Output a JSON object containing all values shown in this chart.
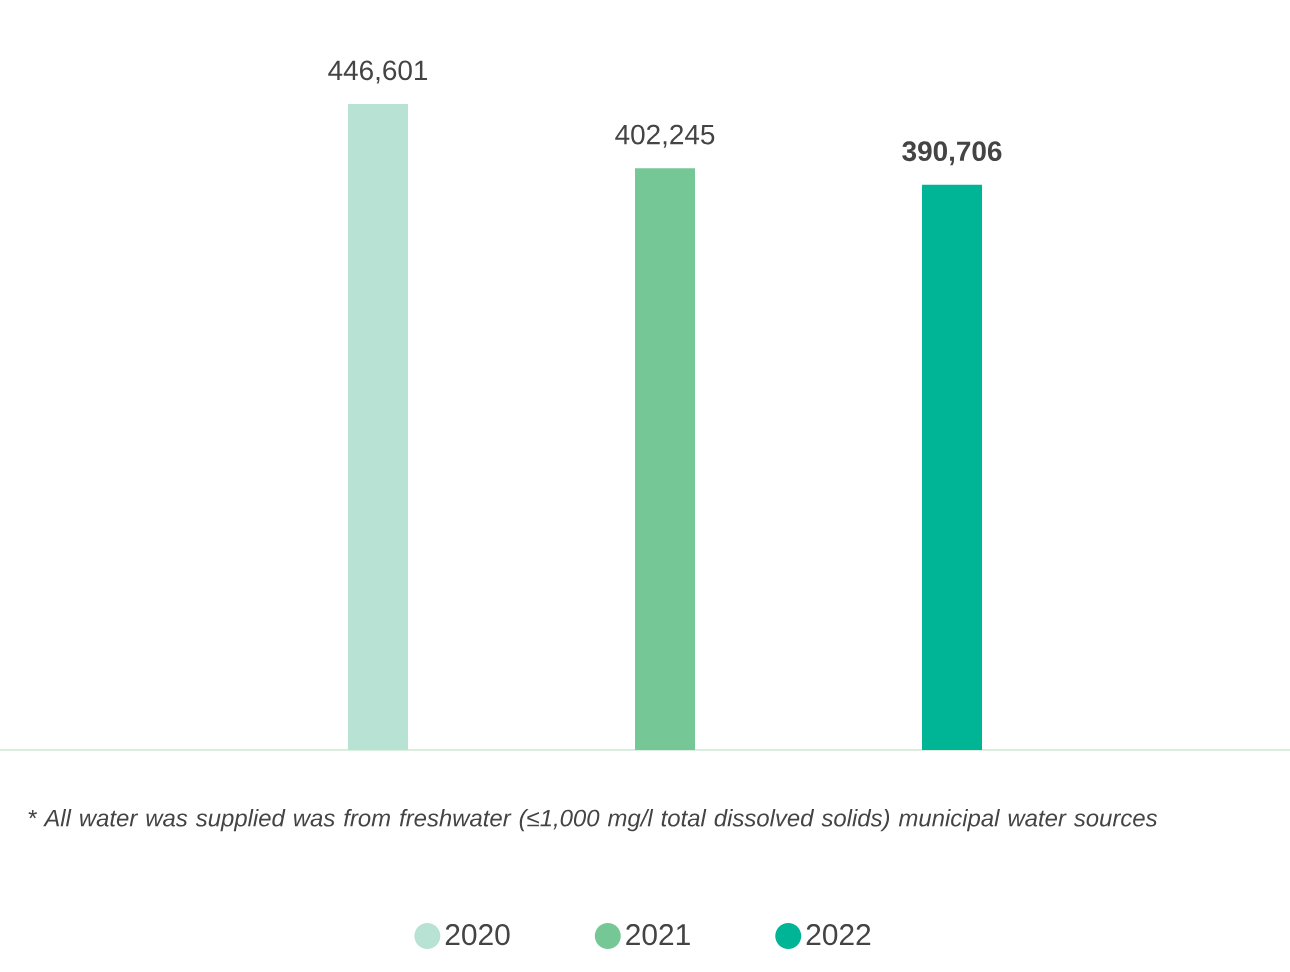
{
  "chart_data": {
    "type": "bar",
    "categories": [
      null,
      null,
      null
    ],
    "stacked": true,
    "series": [
      {
        "name": "2020",
        "color": "#b7e2d4",
        "values": [
          446601,
          null,
          null
        ],
        "value_labels": [
          "446,601",
          null,
          null
        ]
      },
      {
        "name": "2021",
        "color": "#76c796",
        "values": [
          null,
          402245,
          null
        ],
        "value_labels": [
          null,
          "402,245",
          null
        ]
      },
      {
        "name": "2022",
        "color": "#00b496",
        "values": [
          null,
          null,
          390706
        ],
        "value_labels": [
          null,
          null,
          "**390,706**"
        ]
      }
    ],
    "legend": "bottom",
    "annotations": [
      "*  All water was supplied was from freshwater (≤1,000 mg/l total dissolved solids) municipal water sources"
    ]
  }
}
